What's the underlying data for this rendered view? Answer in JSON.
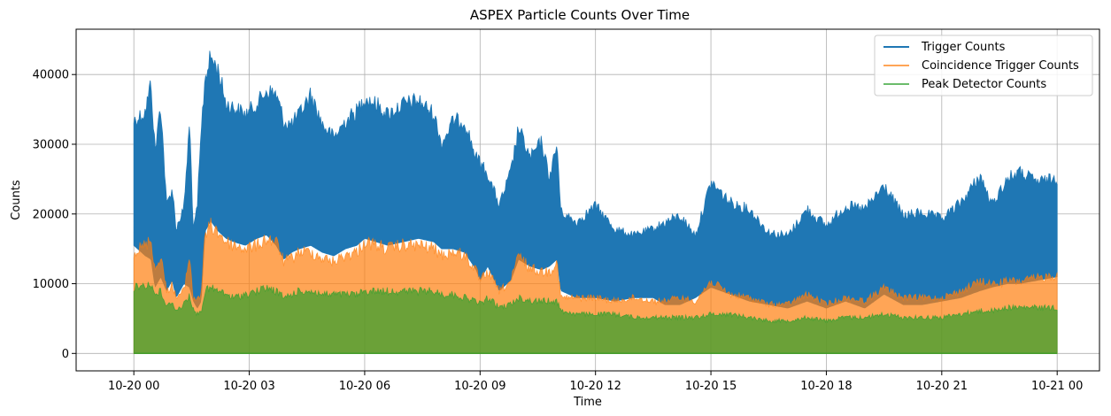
{
  "chart_data": {
    "type": "area",
    "title": "ASPEX Particle Counts Over Time",
    "xlabel": "Time",
    "ylabel": "Counts",
    "x_range_hours": [
      -1.5,
      25.1
    ],
    "ylim": [
      -2500,
      46500
    ],
    "grid": true,
    "legend_position": "top-right",
    "x_tick_labels": [
      "10-20 00",
      "10-20 03",
      "10-20 06",
      "10-20 09",
      "10-20 12",
      "10-20 15",
      "10-20 18",
      "10-20 21",
      "10-21 00"
    ],
    "x_tick_hours": [
      0,
      3,
      6,
      9,
      12,
      15,
      18,
      21,
      24
    ],
    "y_ticks": [
      0,
      10000,
      20000,
      30000,
      40000
    ],
    "series": [
      {
        "name": "Trigger Counts",
        "color": "#1f77b4",
        "opacity": 1.0,
        "hours": [
          0,
          0.3,
          0.45,
          0.55,
          0.7,
          0.85,
          1.0,
          1.1,
          1.3,
          1.45,
          1.55,
          1.65,
          1.75,
          1.85,
          2.0,
          2.2,
          2.4,
          2.6,
          2.9,
          3.2,
          3.45,
          3.7,
          3.9,
          4.1,
          4.3,
          4.6,
          4.9,
          5.2,
          5.5,
          5.8,
          6.0,
          6.3,
          6.6,
          7.0,
          7.4,
          7.8,
          8.0,
          8.3,
          8.6,
          8.9,
          9.0,
          9.2,
          9.5,
          9.8,
          10.0,
          10.3,
          10.6,
          10.8,
          11.0,
          11.1,
          11.5,
          12.0,
          12.5,
          13.0,
          13.5,
          13.8,
          14.2,
          14.6,
          15.0,
          15.5,
          16.0,
          16.5,
          17.0,
          17.5,
          18.0,
          18.5,
          19.0,
          19.5,
          20.0,
          20.5,
          21.0,
          21.5,
          22.0,
          22.3,
          22.7,
          23.0,
          23.5,
          24.0
        ],
        "max": [
          34500,
          36000,
          40500,
          30000,
          37500,
          22000,
          24500,
          18500,
          21500,
          34500,
          18000,
          22000,
          33000,
          41000,
          44000,
          42000,
          37000,
          36500,
          35500,
          37000,
          39000,
          38500,
          34500,
          34000,
          35500,
          38500,
          34000,
          32000,
          34500,
          36000,
          38000,
          37000,
          35500,
          37000,
          37500,
          35500,
          31000,
          34500,
          34500,
          29000,
          28500,
          26500,
          22000,
          27000,
          33500,
          29000,
          31500,
          26000,
          31000,
          21000,
          19500,
          22000,
          18500,
          17500,
          18500,
          19500,
          20500,
          17500,
          25500,
          22500,
          21500,
          18000,
          17500,
          21500,
          19000,
          22000,
          21500,
          25000,
          20500,
          21000,
          20000,
          22500,
          26500,
          22000,
          26000,
          27000,
          25500,
          26000
        ],
        "lower": [
          15500,
          14000,
          13500,
          9500,
          11000,
          9000,
          10500,
          8000,
          10000,
          9500,
          7500,
          6500,
          7500,
          17500,
          19000,
          17500,
          16500,
          16000,
          15500,
          16500,
          17000,
          15500,
          13500,
          14500,
          15000,
          15500,
          14500,
          14000,
          15000,
          15500,
          16500,
          16000,
          15500,
          16000,
          16500,
          16000,
          15000,
          15000,
          14500,
          12000,
          10500,
          12500,
          9000,
          10500,
          13500,
          12500,
          12000,
          12500,
          13500,
          9000,
          8000,
          8000,
          7500,
          8000,
          8000,
          7000,
          7000,
          8000,
          9500,
          8500,
          7500,
          7000,
          6500,
          7500,
          6500,
          7500,
          6500,
          8500,
          7000,
          7000,
          7500,
          8000,
          9000,
          9500,
          10000,
          10000,
          10500,
          11000
        ]
      },
      {
        "name": "Coincidence Trigger Counts",
        "color": "#ff7f0e",
        "opacity": 0.7,
        "hours": [
          0,
          0.3,
          0.45,
          0.55,
          0.7,
          0.85,
          1.0,
          1.1,
          1.3,
          1.45,
          1.55,
          1.65,
          1.75,
          1.85,
          2.0,
          2.2,
          2.4,
          2.6,
          2.9,
          3.2,
          3.45,
          3.7,
          3.9,
          4.1,
          4.3,
          4.6,
          4.9,
          5.2,
          5.5,
          5.8,
          6.0,
          6.3,
          6.6,
          7.0,
          7.4,
          7.8,
          8.0,
          8.3,
          8.6,
          8.9,
          9.0,
          9.2,
          9.5,
          9.8,
          10.0,
          10.3,
          10.6,
          10.8,
          11.0,
          11.1,
          11.5,
          12.0,
          12.5,
          13.0,
          13.5,
          13.8,
          14.2,
          14.6,
          15.0,
          15.5,
          16.0,
          16.5,
          17.0,
          17.5,
          18.0,
          18.5,
          19.0,
          19.5,
          20.0,
          20.5,
          21.0,
          21.5,
          22.0,
          22.3,
          22.7,
          23.0,
          23.5,
          24.0
        ],
        "max": [
          15500,
          16500,
          17500,
          12500,
          15000,
          9500,
          10500,
          8500,
          9500,
          15000,
          8000,
          8500,
          9000,
          18000,
          19500,
          18500,
          17000,
          16500,
          16000,
          16500,
          17500,
          17000,
          14000,
          14500,
          15500,
          15500,
          14500,
          14000,
          15000,
          15500,
          17000,
          16500,
          16000,
          16500,
          16500,
          16000,
          15000,
          15500,
          15000,
          12500,
          11000,
          12500,
          9500,
          11000,
          15000,
          13000,
          12500,
          12500,
          14000,
          8500,
          8500,
          8500,
          8000,
          8500,
          8000,
          8000,
          8500,
          8000,
          11000,
          9000,
          8500,
          7500,
          7500,
          9000,
          7500,
          8500,
          8000,
          10000,
          8500,
          8500,
          8500,
          9500,
          11000,
          10500,
          11000,
          11000,
          11500,
          12000
        ],
        "lower": [
          0,
          0,
          0,
          0,
          0,
          0,
          0,
          0,
          0,
          0,
          0,
          0,
          0,
          0,
          0,
          0,
          0,
          0,
          0,
          0,
          0,
          0,
          0,
          0,
          0,
          0,
          0,
          0,
          0,
          0,
          0,
          0,
          0,
          0,
          0,
          0,
          0,
          0,
          0,
          0,
          0,
          0,
          0,
          0,
          0,
          0,
          0,
          0,
          0,
          0,
          0,
          0,
          0,
          0,
          0,
          0,
          0,
          0,
          0,
          0,
          0,
          0,
          0,
          0,
          0,
          0,
          0,
          0,
          0,
          0,
          0,
          0,
          0,
          0,
          0,
          0,
          0,
          0
        ]
      },
      {
        "name": "Peak Detector Counts",
        "color": "#2ca02c",
        "opacity": 0.7,
        "hours": [
          0,
          0.3,
          0.45,
          0.55,
          0.7,
          0.85,
          1.0,
          1.1,
          1.3,
          1.45,
          1.55,
          1.65,
          1.75,
          1.85,
          2.0,
          2.2,
          2.4,
          2.6,
          2.9,
          3.2,
          3.45,
          3.7,
          3.9,
          4.1,
          4.3,
          4.6,
          4.9,
          5.2,
          5.5,
          5.8,
          6.0,
          6.3,
          6.6,
          7.0,
          7.4,
          7.8,
          8.0,
          8.3,
          8.6,
          8.9,
          9.0,
          9.2,
          9.5,
          9.8,
          10.0,
          10.3,
          10.6,
          10.8,
          11.0,
          11.1,
          11.5,
          12.0,
          12.5,
          13.0,
          13.5,
          13.8,
          14.2,
          14.6,
          15.0,
          15.5,
          16.0,
          16.5,
          17.0,
          17.5,
          18.0,
          18.5,
          19.0,
          19.5,
          20.0,
          20.5,
          21.0,
          21.5,
          22.0,
          22.3,
          22.7,
          23.0,
          23.5,
          24.0
        ],
        "max": [
          10000,
          10500,
          10500,
          9000,
          9500,
          7000,
          8000,
          6500,
          7500,
          9000,
          6500,
          6000,
          6500,
          9500,
          10000,
          9500,
          9000,
          8500,
          9000,
          9500,
          10000,
          9500,
          8500,
          9000,
          9500,
          9500,
          9000,
          9000,
          9000,
          9000,
          9500,
          9500,
          9500,
          9500,
          9500,
          9500,
          9000,
          9000,
          8500,
          8000,
          7500,
          8500,
          7000,
          7500,
          8500,
          8000,
          8000,
          8000,
          8000,
          6500,
          6000,
          6000,
          6000,
          5500,
          5500,
          5500,
          5500,
          5500,
          6000,
          6000,
          5500,
          5000,
          5000,
          5500,
          5000,
          5500,
          5500,
          6000,
          5500,
          5500,
          5500,
          6000,
          6500,
          6500,
          7000,
          7000,
          7000,
          7000
        ],
        "lower": [
          0,
          0,
          0,
          0,
          0,
          0,
          0,
          0,
          0,
          0,
          0,
          0,
          0,
          0,
          0,
          0,
          0,
          0,
          0,
          0,
          0,
          0,
          0,
          0,
          0,
          0,
          0,
          0,
          0,
          0,
          0,
          0,
          0,
          0,
          0,
          0,
          0,
          0,
          0,
          0,
          0,
          0,
          0,
          0,
          0,
          0,
          0,
          0,
          0,
          0,
          0,
          0,
          0,
          0,
          0,
          0,
          0,
          0,
          0,
          0,
          0,
          0,
          0,
          0,
          0,
          0,
          0,
          0,
          0,
          0,
          0,
          0,
          0,
          0,
          0,
          0,
          0,
          0
        ]
      }
    ]
  }
}
